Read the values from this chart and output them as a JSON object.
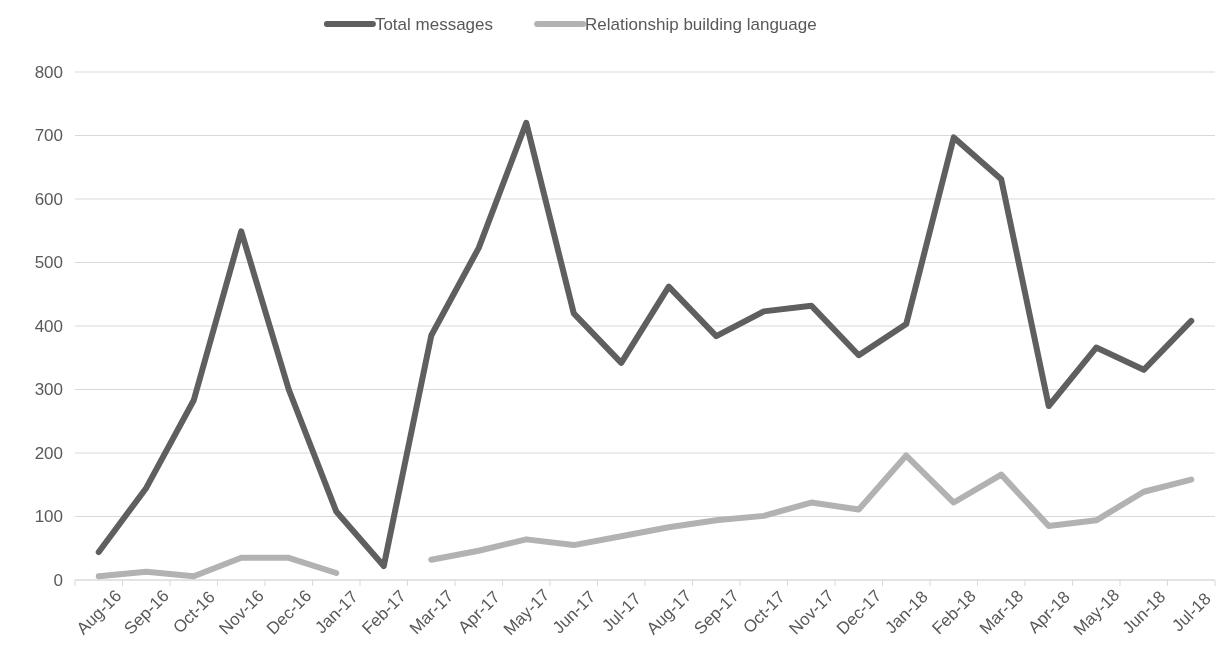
{
  "chart_data": {
    "type": "line",
    "categories": [
      "Aug-16",
      "Sep-16",
      "Oct-16",
      "Nov-16",
      "Dec-16",
      "Jan-17",
      "Feb-17",
      "Mar-17",
      "Apr-17",
      "May-17",
      "Jun-17",
      "Jul-17",
      "Aug-17",
      "Sep-17",
      "Oct-17",
      "Nov-17",
      "Dec-17",
      "Jan-18",
      "Feb-18",
      "Mar-18",
      "Apr-18",
      "May-18",
      "Jun-18",
      "Jul-18"
    ],
    "series": [
      {
        "name": "Total messages",
        "color": "#5f5f5f",
        "values": [
          44,
          145,
          283,
          549,
          300,
          108,
          22,
          385,
          523,
          720,
          420,
          342,
          462,
          384,
          423,
          432,
          354,
          403,
          697,
          631,
          274,
          366,
          331,
          408
        ]
      },
      {
        "name": "Relationship building language",
        "color": "#b2b2b2",
        "values": [
          6,
          13,
          6,
          35,
          35,
          11,
          null,
          32,
          46,
          64,
          55,
          69,
          83,
          94,
          101,
          122,
          111,
          196,
          122,
          166,
          85,
          94,
          139,
          158
        ]
      }
    ],
    "ylim": [
      0,
      800
    ],
    "yticks": [
      0,
      100,
      200,
      300,
      400,
      500,
      600,
      700,
      800
    ],
    "grid": "y",
    "legend": "top",
    "marker": "none",
    "line_style": "solid"
  }
}
